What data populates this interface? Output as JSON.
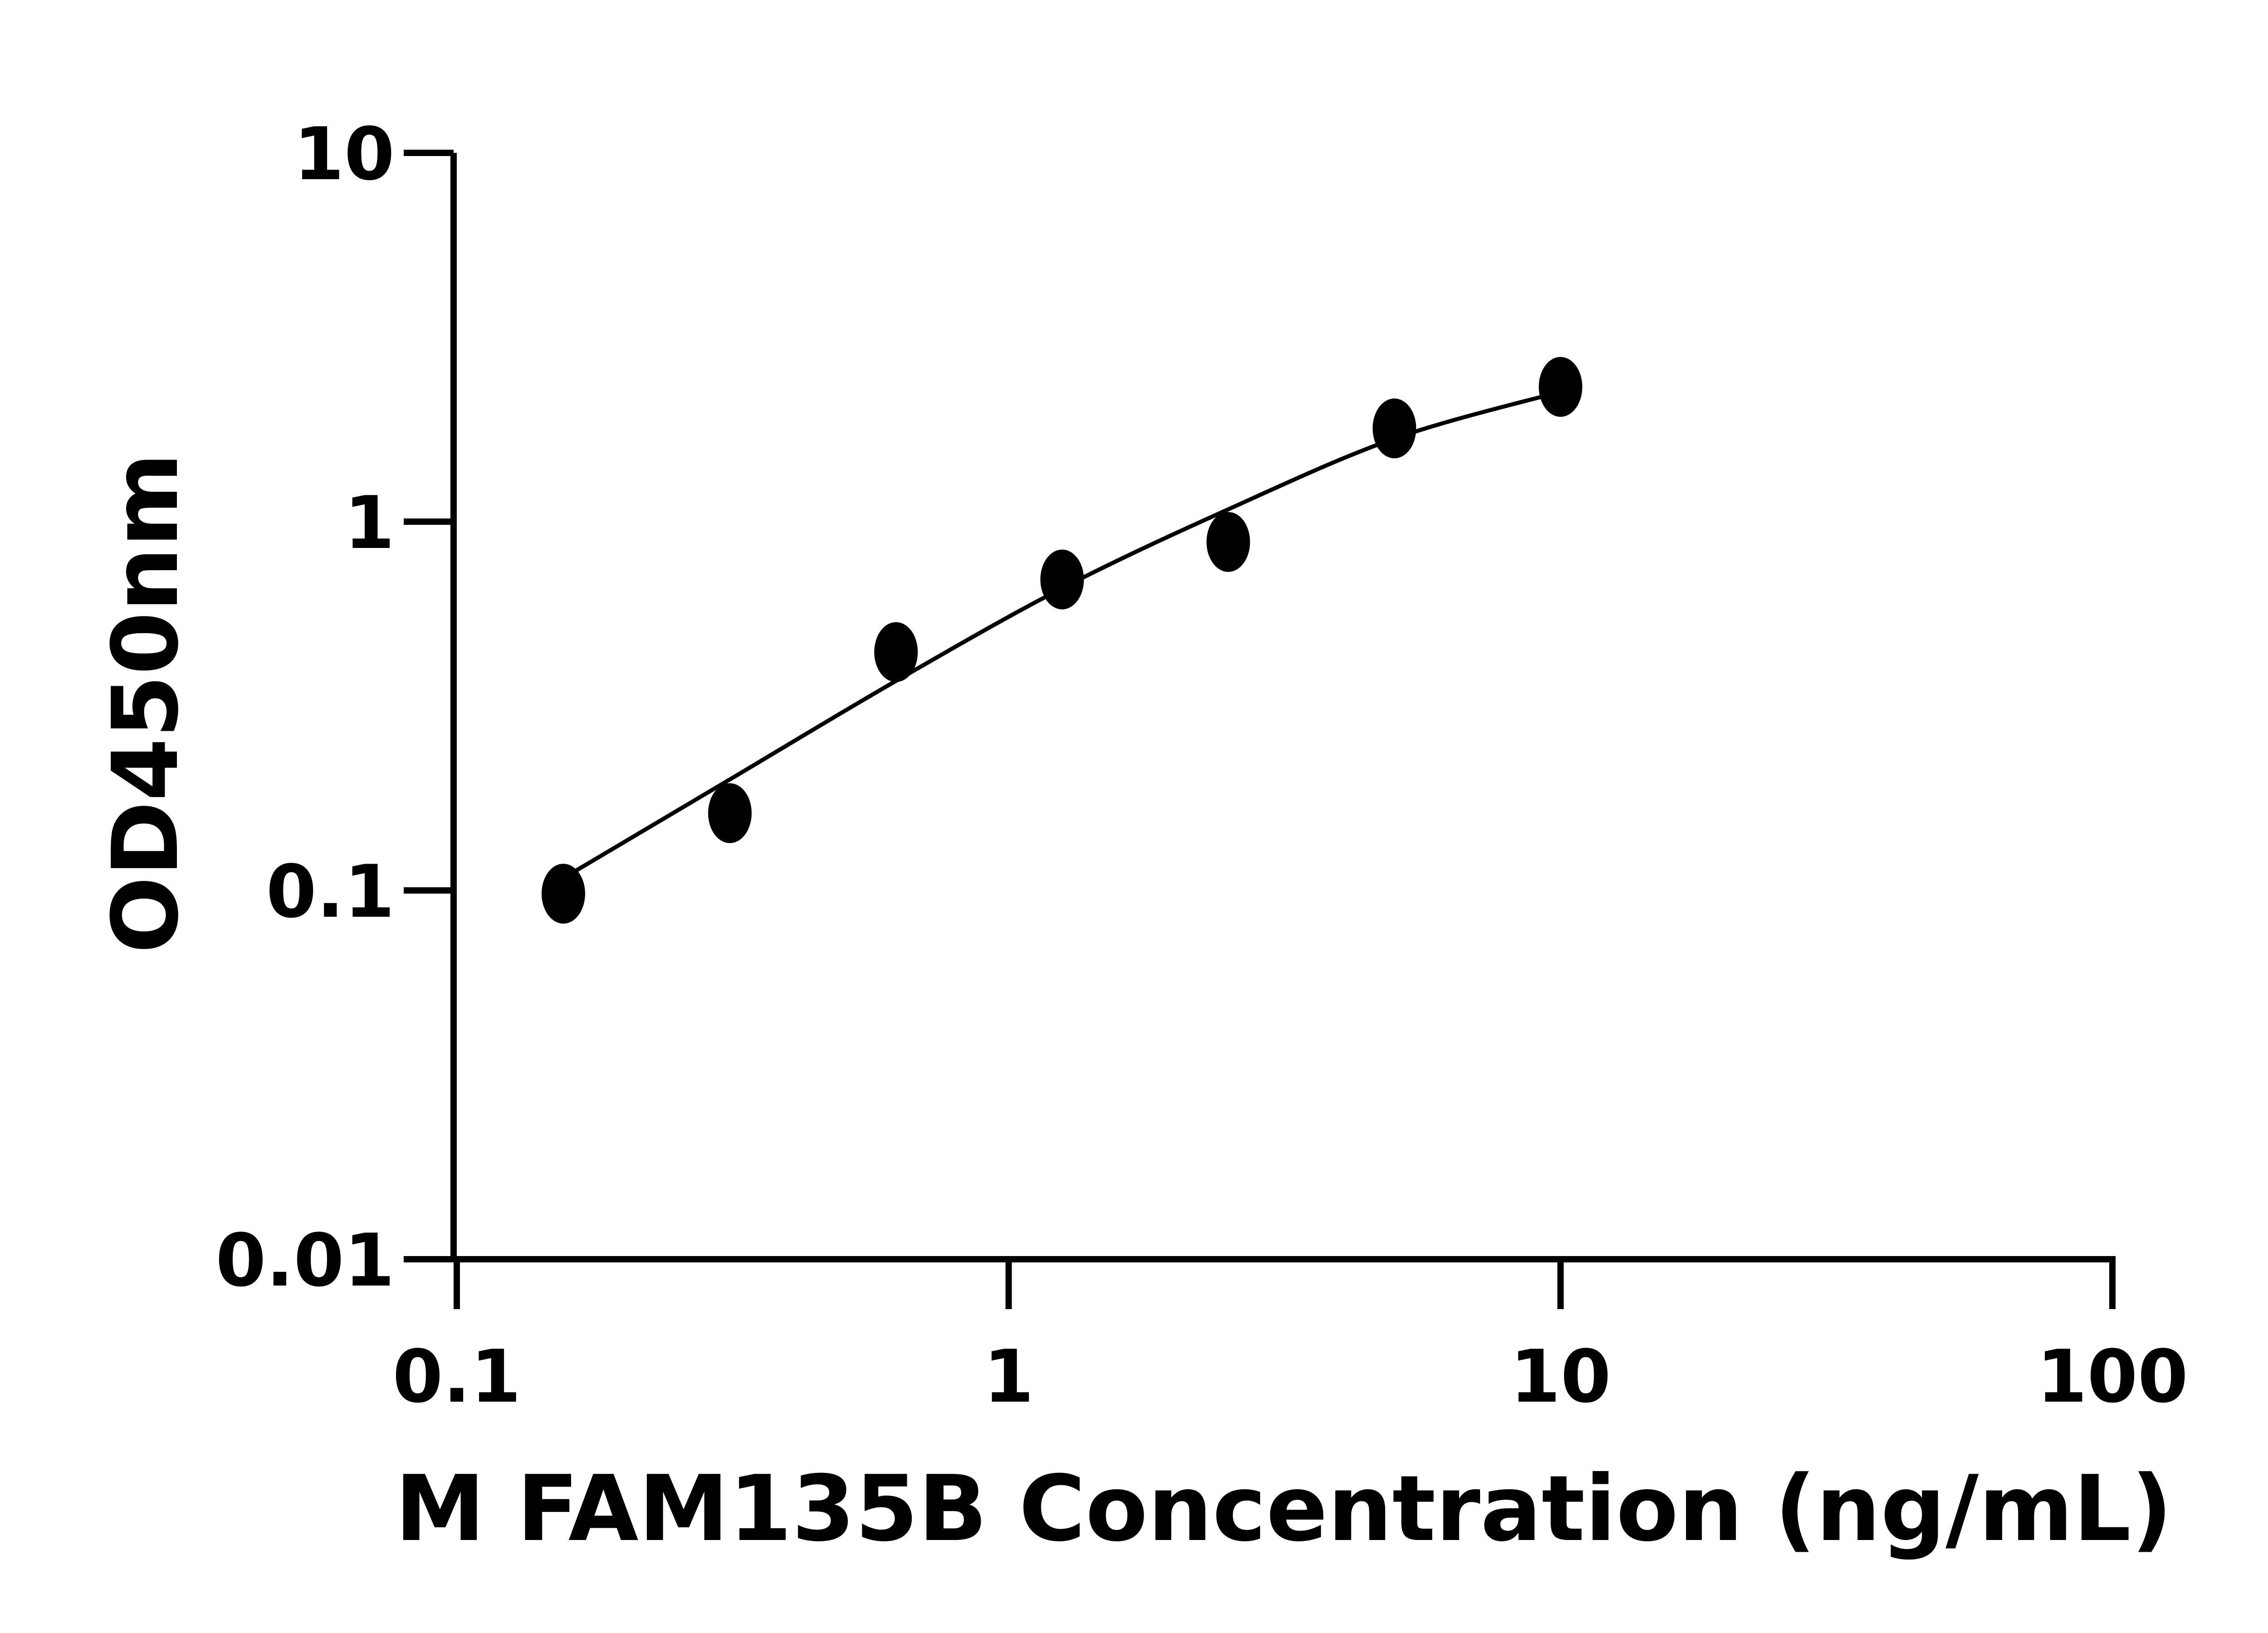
{
  "chart_data": {
    "type": "scatter",
    "title": "",
    "xlabel": "M FAM135B Concentration (ng/mL)",
    "ylabel": "OD450nm",
    "x_scale": "log",
    "y_scale": "log",
    "xlim": [
      0.1,
      100
    ],
    "ylim": [
      0.01,
      10
    ],
    "x_ticks": [
      "0.1",
      "1",
      "10",
      "100"
    ],
    "y_ticks": [
      "0.01",
      "0.1",
      "1",
      "10"
    ],
    "grid": false,
    "color": "#000000",
    "points": {
      "x": [
        0.156,
        0.3125,
        0.625,
        1.25,
        2.5,
        5,
        10
      ],
      "y": [
        0.098,
        0.162,
        0.443,
        0.697,
        0.881,
        1.79,
        2.32
      ]
    },
    "fit_curve": {
      "x": [
        0.156,
        0.3125,
        0.625,
        1.25,
        2.5,
        5,
        10
      ],
      "y": [
        0.108,
        0.2,
        0.37,
        0.66,
        1.08,
        1.68,
        2.25
      ]
    }
  }
}
